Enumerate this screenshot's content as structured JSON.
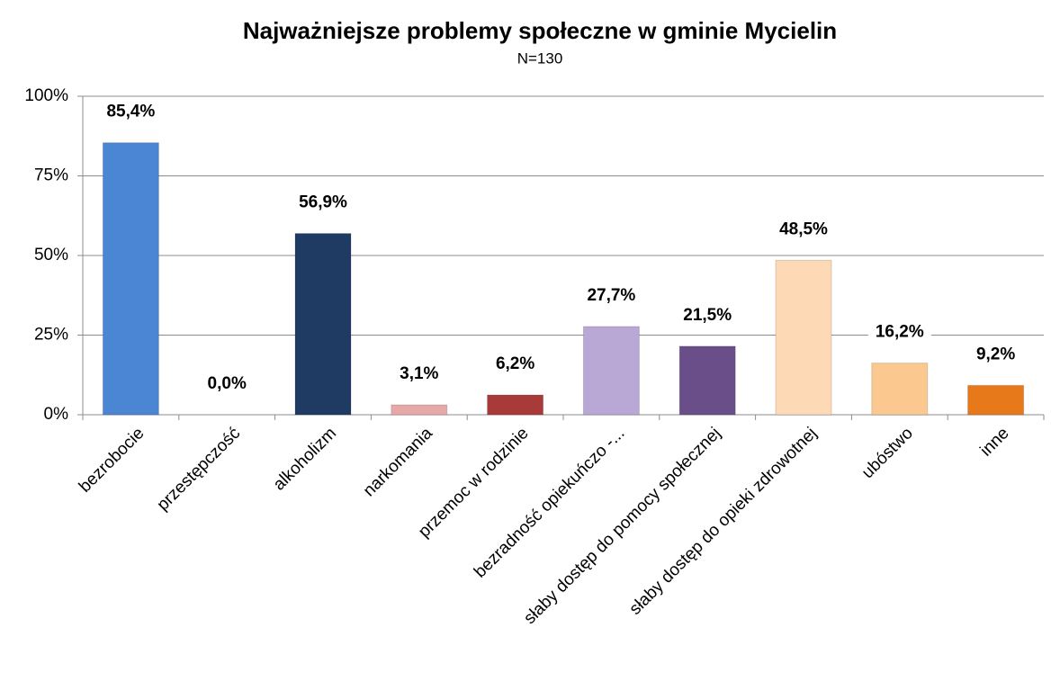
{
  "chart_data": {
    "type": "bar",
    "title": "Najważniejsze problemy społeczne w gminie Mycielin",
    "subtitle": "N=130",
    "categories": [
      "bezrobocie",
      "przestępczość",
      "alkoholizm",
      "narkomania",
      "przemoc w rodzinie",
      "bezradność opiekuńczo -...",
      "słaby dostęp do pomocy społecznej",
      "słaby dostęp do opieki zdrowotnej",
      "ubóstwo",
      "inne"
    ],
    "values": [
      85.4,
      0.0,
      56.9,
      3.1,
      6.2,
      27.7,
      21.5,
      48.5,
      16.2,
      9.2
    ],
    "value_labels": [
      "85,4%",
      "0,0%",
      "56,9%",
      "3,1%",
      "6,2%",
      "27,7%",
      "21,5%",
      "48,5%",
      "16,2%",
      "9,2%"
    ],
    "colors": [
      "#4a86d4",
      "#c0504d",
      "#1f3b63",
      "#e6a9a8",
      "#a83a3a",
      "#b9a7d5",
      "#6a4e8a",
      "#fdd9b5",
      "#fbc98f",
      "#e8791a"
    ],
    "ylim": [
      0,
      100
    ],
    "yticks": [
      {
        "value": 0,
        "label": "0%"
      },
      {
        "value": 25,
        "label": "25%"
      },
      {
        "value": 50,
        "label": "50%"
      },
      {
        "value": 75,
        "label": "75%"
      },
      {
        "value": 100,
        "label": "100%"
      }
    ],
    "grid": true
  }
}
